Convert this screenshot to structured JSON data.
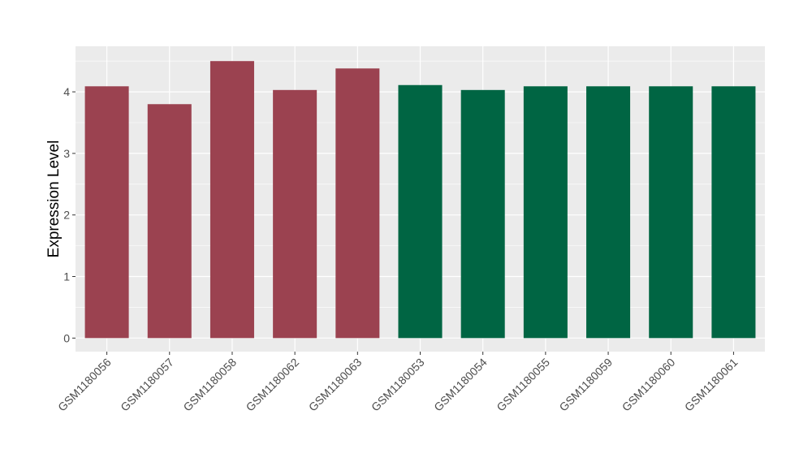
{
  "chart_data": {
    "type": "bar",
    "title": "",
    "xlabel": "",
    "ylabel": "Expression Level",
    "categories": [
      "GSM1180056",
      "GSM1180057",
      "GSM1180058",
      "GSM1180062",
      "GSM1180063",
      "GSM1180053",
      "GSM1180054",
      "GSM1180055",
      "GSM1180059",
      "GSM1180060",
      "GSM1180061"
    ],
    "values": [
      4.09,
      3.8,
      4.5,
      4.03,
      4.38,
      4.11,
      4.03,
      4.09,
      4.09,
      4.09,
      4.09
    ],
    "groups": [
      0,
      0,
      0,
      0,
      0,
      1,
      1,
      1,
      1,
      1,
      1
    ],
    "group_colors": [
      "#9b4250",
      "#006543"
    ],
    "ylim": [
      -0.22,
      4.74
    ],
    "yticks": [
      0,
      1,
      2,
      3,
      4
    ],
    "grid": true,
    "panel_background": "#ebebeb"
  }
}
